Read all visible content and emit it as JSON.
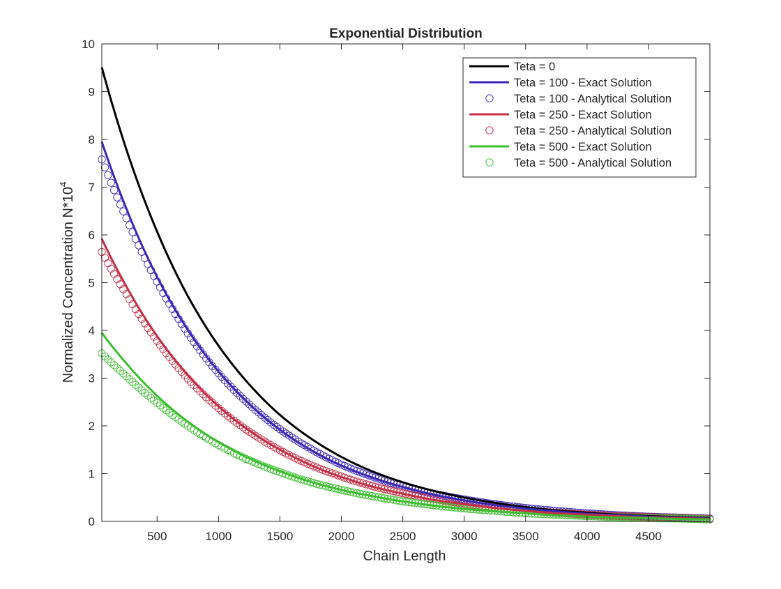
{
  "chart_data": {
    "type": "line",
    "title": "Exponential Distribution",
    "xlabel": "Chain Length",
    "ylabel_main": "Normalized Concentration N*10",
    "ylabel_exponent": "4",
    "xlim": [
      50,
      5000
    ],
    "ylim": [
      0,
      10
    ],
    "xticks": [
      500,
      1000,
      1500,
      2000,
      2500,
      3000,
      3500,
      4000,
      4500
    ],
    "yticks": [
      0,
      1,
      2,
      3,
      4,
      5,
      6,
      7,
      8,
      9,
      10
    ],
    "grid": false,
    "legend_position": "top-right",
    "marker_x_start": 50,
    "marker_x_end": 5000,
    "marker_x_step": 25,
    "series": [
      {
        "name": "Teta = 0",
        "kind": "line",
        "color": "#000000",
        "x": [
          50,
          250,
          500,
          750,
          1000,
          1250,
          1500,
          1750,
          2000,
          2250,
          2500,
          2750,
          3000,
          3250,
          3500,
          3750,
          4000,
          4250,
          4500,
          4750,
          5000
        ],
        "values": [
          9.51,
          7.79,
          6.07,
          4.72,
          3.68,
          2.87,
          2.23,
          1.74,
          1.35,
          1.05,
          0.82,
          0.64,
          0.5,
          0.39,
          0.3,
          0.23,
          0.18,
          0.14,
          0.11,
          0.09,
          0.07
        ]
      },
      {
        "name": "Teta = 100 - Exact Solution",
        "kind": "line",
        "color": "#3b27b5",
        "x": [
          50,
          250,
          500,
          750,
          1000,
          1250,
          1500,
          1750,
          2000,
          2250,
          2500,
          2750,
          3000,
          3250,
          3500,
          3750,
          4000,
          4250,
          4500,
          4750,
          5000
        ],
        "values": [
          7.95,
          6.55,
          5.12,
          4.01,
          3.14,
          2.46,
          1.92,
          1.5,
          1.17,
          0.92,
          0.72,
          0.56,
          0.44,
          0.34,
          0.27,
          0.21,
          0.16,
          0.13,
          0.1,
          0.08,
          0.06
        ]
      },
      {
        "name": "Teta = 100 - Analytical Solution",
        "kind": "marker",
        "color": "#3b27b5",
        "x": [
          50,
          250,
          500,
          750,
          1000,
          1250,
          1500,
          1750,
          2000,
          2250,
          2500,
          2750,
          3000,
          3250,
          3500,
          3750,
          4000,
          4250,
          4500,
          4750,
          5000
        ],
        "values": [
          7.58,
          6.35,
          5.02,
          3.94,
          3.1,
          2.45,
          1.93,
          1.52,
          1.19,
          0.94,
          0.74,
          0.58,
          0.46,
          0.36,
          0.28,
          0.22,
          0.17,
          0.13,
          0.1,
          0.08,
          0.06
        ]
      },
      {
        "name": "Teta = 250 - Exact Solution",
        "kind": "line",
        "color": "#c32f45",
        "x": [
          50,
          250,
          500,
          750,
          1000,
          1250,
          1500,
          1750,
          2000,
          2250,
          2500,
          2750,
          3000,
          3250,
          3500,
          3750,
          4000,
          4250,
          4500,
          4750,
          5000
        ],
        "values": [
          5.92,
          4.92,
          3.88,
          3.06,
          2.41,
          1.9,
          1.5,
          1.18,
          0.93,
          0.73,
          0.58,
          0.45,
          0.36,
          0.28,
          0.22,
          0.17,
          0.14,
          0.11,
          0.08,
          0.07,
          0.05
        ]
      },
      {
        "name": "Teta = 250 - Analytical Solution",
        "kind": "marker",
        "color": "#c32f45",
        "x": [
          50,
          250,
          500,
          750,
          1000,
          1250,
          1500,
          1750,
          2000,
          2250,
          2500,
          2750,
          3000,
          3250,
          3500,
          3750,
          4000,
          4250,
          4500,
          4750,
          5000
        ],
        "values": [
          5.64,
          4.76,
          3.78,
          2.99,
          2.37,
          1.88,
          1.49,
          1.18,
          0.94,
          0.74,
          0.59,
          0.47,
          0.37,
          0.29,
          0.23,
          0.18,
          0.14,
          0.11,
          0.09,
          0.07,
          0.05
        ]
      },
      {
        "name": "Teta = 500 - Exact Solution",
        "kind": "line",
        "color": "#3cbd30",
        "x": [
          50,
          250,
          500,
          750,
          1000,
          1250,
          1500,
          1750,
          2000,
          2250,
          2500,
          2750,
          3000,
          3250,
          3500,
          3750,
          4000,
          4250,
          4500,
          4750,
          5000
        ],
        "values": [
          3.95,
          3.31,
          2.63,
          2.09,
          1.66,
          1.32,
          1.05,
          0.83,
          0.66,
          0.53,
          0.42,
          0.33,
          0.26,
          0.21,
          0.17,
          0.13,
          0.1,
          0.08,
          0.07,
          0.05,
          0.04
        ]
      },
      {
        "name": "Teta = 500 - Analytical Solution",
        "kind": "marker",
        "color": "#3cbd30",
        "x": [
          50,
          250,
          500,
          750,
          1000,
          1250,
          1500,
          1750,
          2000,
          2250,
          2500,
          2750,
          3000,
          3250,
          3500,
          3750,
          4000,
          4250,
          4500,
          4750,
          5000
        ],
        "values": [
          3.52,
          3.04,
          2.48,
          2.0,
          1.6,
          1.28,
          1.03,
          0.82,
          0.66,
          0.53,
          0.42,
          0.34,
          0.27,
          0.22,
          0.17,
          0.14,
          0.11,
          0.09,
          0.07,
          0.06,
          0.04
        ]
      }
    ]
  }
}
